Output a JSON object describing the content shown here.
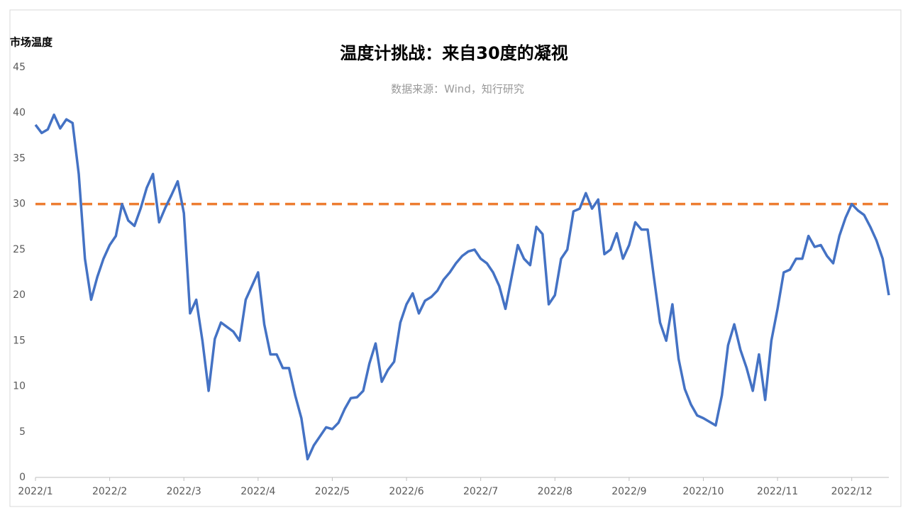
{
  "chart_data": {
    "type": "line",
    "title": "温度计挑战：来自30度的凝视",
    "subtitle": "数据来源：Wind，知行研究",
    "y_label": "市场温度",
    "categories": [
      "2022/1",
      null,
      null,
      null,
      null,
      null,
      null,
      null,
      null,
      null,
      null,
      null,
      "2022/2",
      null,
      null,
      null,
      null,
      null,
      null,
      null,
      null,
      null,
      null,
      null,
      "2022/3",
      null,
      null,
      null,
      null,
      null,
      null,
      null,
      null,
      null,
      null,
      null,
      "2022/4",
      null,
      null,
      null,
      null,
      null,
      null,
      null,
      null,
      null,
      null,
      null,
      "2022/5",
      null,
      null,
      null,
      null,
      null,
      null,
      null,
      null,
      null,
      null,
      null,
      "2022/6",
      null,
      null,
      null,
      null,
      null,
      null,
      null,
      null,
      null,
      null,
      null,
      "2022/7",
      null,
      null,
      null,
      null,
      null,
      null,
      null,
      null,
      null,
      null,
      null,
      "2022/8",
      null,
      null,
      null,
      null,
      null,
      null,
      null,
      null,
      null,
      null,
      null,
      "2022/9",
      null,
      null,
      null,
      null,
      null,
      null,
      null,
      null,
      null,
      null,
      null,
      "2022/10",
      null,
      null,
      null,
      null,
      null,
      null,
      null,
      null,
      null,
      null,
      null,
      "2022/11",
      null,
      null,
      null,
      null,
      null,
      null,
      null,
      null,
      null,
      null,
      null,
      "2022/12",
      null,
      null,
      null,
      null,
      null,
      null
    ],
    "series": [
      {
        "color": "#4472c4",
        "values": [
          38.7,
          37.8,
          38.2,
          39.8,
          38.3,
          39.3,
          38.9,
          33.3,
          24,
          19.5,
          22,
          24,
          25.5,
          26.5,
          30,
          28.2,
          27.6,
          29.5,
          31.8,
          33.3,
          28,
          29.6,
          31,
          32.5,
          29,
          18,
          19.5,
          15,
          9.5,
          15.2,
          17,
          16.5,
          16,
          15,
          19.5,
          21,
          22.5,
          16.8,
          13.5,
          13.5,
          12,
          12,
          9,
          6.5,
          2,
          3.5,
          4.5,
          5.5,
          5.3,
          6,
          7.5,
          8.7,
          8.8,
          9.5,
          12.5,
          14.7,
          10.5,
          11.8,
          12.7,
          17,
          19,
          20.2,
          18,
          19.4,
          19.8,
          20.5,
          21.7,
          22.5,
          23.5,
          24.3,
          24.8,
          25,
          24,
          23.5,
          22.5,
          21,
          18.5,
          22,
          25.5,
          24,
          23.3,
          27.5,
          26.7,
          19,
          20,
          24,
          25,
          29.2,
          29.5,
          31.2,
          29.5,
          30.5,
          24.5,
          25,
          26.8,
          24,
          25.5,
          28,
          27.2,
          27.2,
          22,
          17,
          15,
          19,
          13,
          9.7,
          8,
          6.8,
          6.5,
          6.1,
          5.7,
          9,
          14.5,
          16.8,
          14,
          12,
          9.5,
          13.5,
          8.5,
          15,
          18.5,
          22.5,
          22.8,
          24,
          24,
          26.5,
          25.3,
          25.5,
          24.3,
          23.5,
          26.5,
          28.5,
          30,
          29.3,
          28.8,
          27.5,
          26,
          24,
          20
        ]
      }
    ],
    "reference_line": {
      "value": 30,
      "color": "#ed7d31",
      "dashed": true
    },
    "ylim": [
      0,
      45
    ],
    "yticks": [
      0,
      5,
      10,
      15,
      20,
      25,
      30,
      35,
      40,
      45
    ],
    "grid": false
  }
}
